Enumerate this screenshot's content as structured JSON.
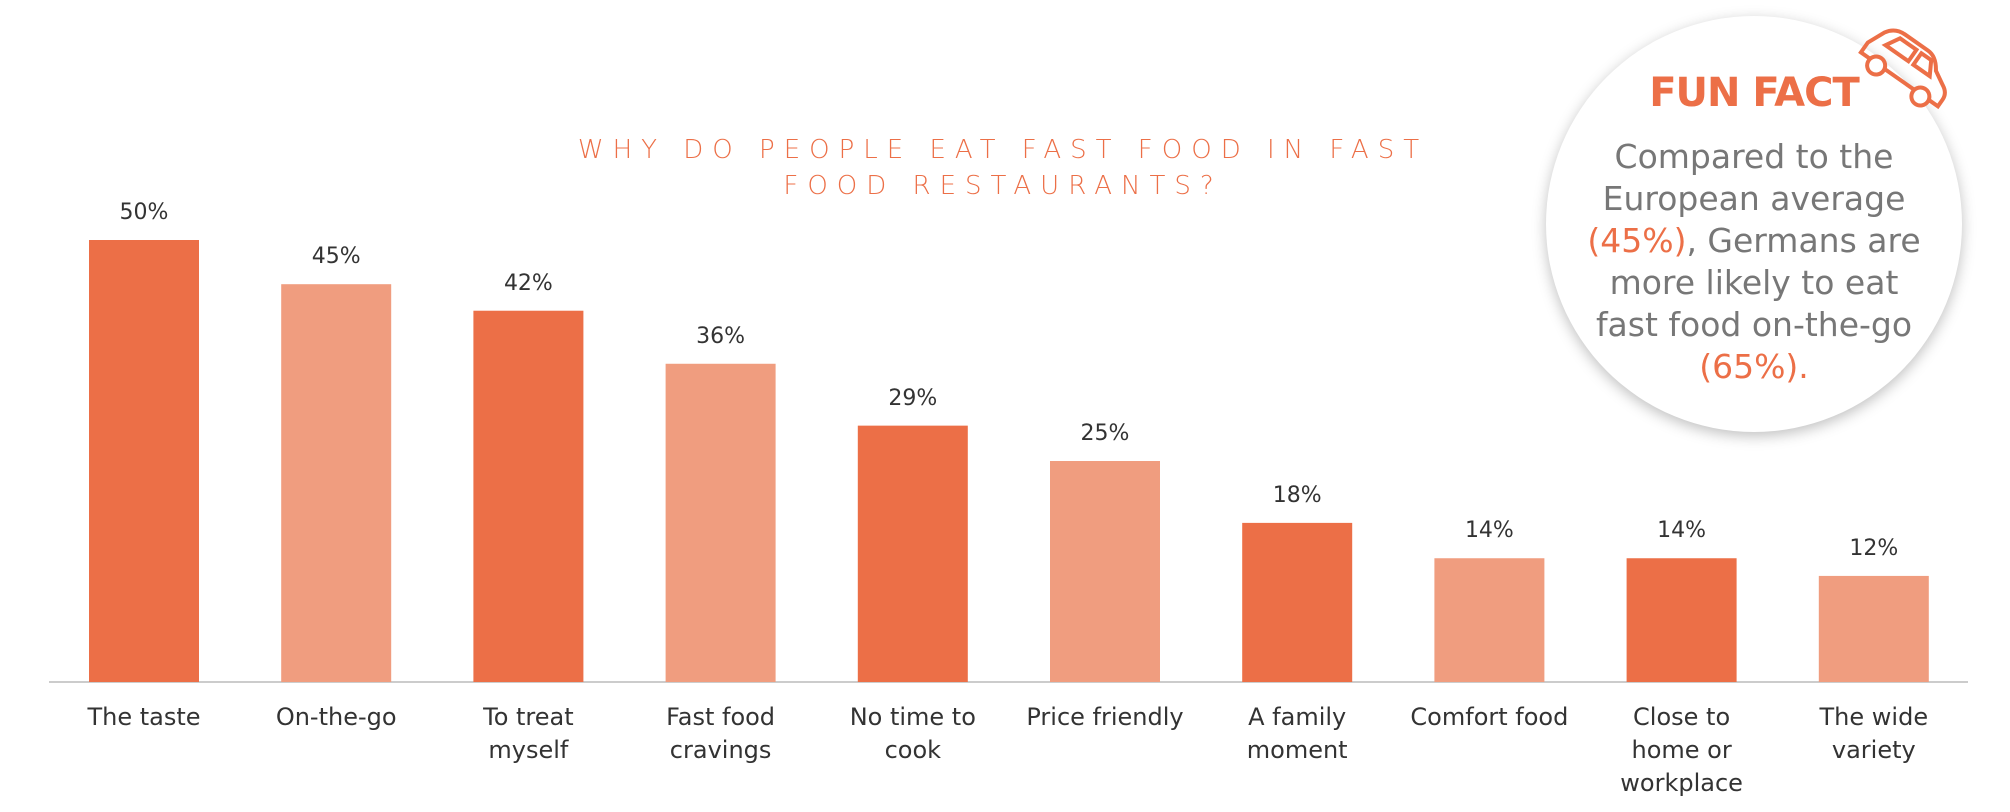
{
  "chart_data": {
    "type": "bar",
    "title": "WHY DO PEOPLE EAT FAST FOOD IN FAST FOOD RESTAURANTS?",
    "categories": [
      "The taste",
      "On-the-go",
      "To treat myself",
      "Fast food cravings",
      "No time to cook",
      "Price friendly",
      "A family moment",
      "Comfort food",
      "Close to home or workplace",
      "The wide variety"
    ],
    "values": [
      50,
      45,
      42,
      36,
      29,
      25,
      18,
      14,
      14,
      12
    ],
    "value_labels": [
      "50%",
      "45%",
      "42%",
      "36%",
      "29%",
      "25%",
      "18%",
      "14%",
      "14%",
      "12%"
    ],
    "colors": [
      "#ec6f47",
      "#f09d7f",
      "#ec6f47",
      "#f09d7f",
      "#ec6f47",
      "#f09d7f",
      "#ec6f47",
      "#f09d7f",
      "#ec6f47",
      "#f09d7f"
    ],
    "ylim": [
      0,
      50
    ]
  },
  "fun_fact": {
    "title": "FUN FACT",
    "text": [
      "Compared to the European average ",
      "(45%)",
      ", Germans are more likely to eat fast food on-the-go ",
      "(65%)."
    ]
  }
}
